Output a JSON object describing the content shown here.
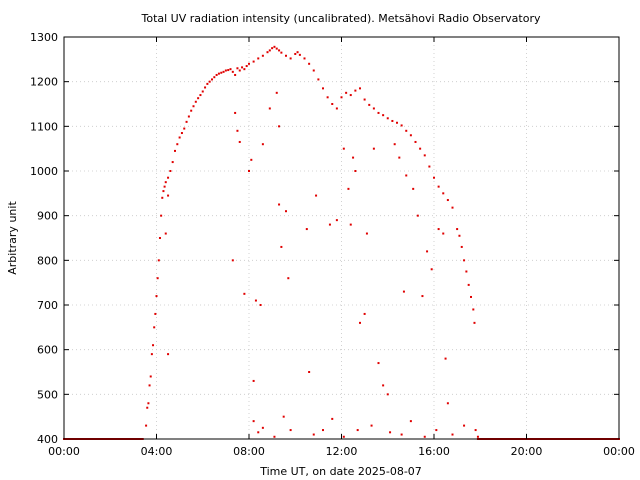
{
  "chart_data": {
    "type": "scatter",
    "title": "Total UV radiation intensity (uncalibrated). Metsähovi Radio Observatory",
    "xlabel": "Time UT, on date 2025-08-07",
    "ylabel": "Arbitrary unit",
    "xlim": [
      0,
      24
    ],
    "ylim": [
      400,
      1300
    ],
    "x_unit": "hours UT",
    "x_ticks": [
      0,
      4,
      8,
      12,
      16,
      20,
      24
    ],
    "x_tick_labels": [
      "00:00",
      "04:00",
      "08:00",
      "12:00",
      "16:00",
      "20:00",
      "00:00"
    ],
    "y_ticks": [
      400,
      500,
      600,
      700,
      800,
      900,
      1000,
      1100,
      1200,
      1300
    ],
    "y_tick_labels": [
      "400",
      "500",
      "600",
      "700",
      "800",
      "900",
      "1000",
      "1100",
      "1200",
      "1300"
    ],
    "grid": true,
    "marker_color": "#e00000",
    "series": [
      {
        "points": [
          [
            0.0,
            400
          ],
          [
            0.5,
            400
          ],
          [
            1.0,
            400
          ],
          [
            1.5,
            400
          ],
          [
            2.0,
            400
          ],
          [
            2.5,
            400
          ],
          [
            3.0,
            400
          ],
          [
            3.4,
            400
          ],
          [
            3.55,
            430
          ],
          [
            3.6,
            470
          ],
          [
            3.65,
            480
          ],
          [
            3.7,
            520
          ],
          [
            3.75,
            540
          ],
          [
            3.8,
            590
          ],
          [
            3.85,
            610
          ],
          [
            3.9,
            650
          ],
          [
            3.95,
            680
          ],
          [
            4.0,
            720
          ],
          [
            4.05,
            760
          ],
          [
            4.1,
            800
          ],
          [
            4.15,
            850
          ],
          [
            4.2,
            900
          ],
          [
            4.25,
            940
          ],
          [
            4.3,
            955
          ],
          [
            4.35,
            965
          ],
          [
            4.4,
            975
          ],
          [
            4.5,
            985
          ],
          [
            4.6,
            1000
          ],
          [
            4.7,
            1020
          ],
          [
            4.8,
            1045
          ],
          [
            4.9,
            1060
          ],
          [
            5.0,
            1075
          ],
          [
            5.1,
            1085
          ],
          [
            5.2,
            1095
          ],
          [
            5.3,
            1110
          ],
          [
            5.4,
            1122
          ],
          [
            5.5,
            1135
          ],
          [
            5.6,
            1145
          ],
          [
            5.7,
            1155
          ],
          [
            5.8,
            1163
          ],
          [
            5.9,
            1170
          ],
          [
            6.0,
            1178
          ],
          [
            6.1,
            1187
          ],
          [
            6.2,
            1195
          ],
          [
            6.3,
            1200
          ],
          [
            6.4,
            1205
          ],
          [
            6.5,
            1210
          ],
          [
            6.6,
            1215
          ],
          [
            6.7,
            1218
          ],
          [
            6.8,
            1220
          ],
          [
            6.9,
            1222
          ],
          [
            7.0,
            1225
          ],
          [
            7.1,
            1226
          ],
          [
            7.2,
            1228
          ],
          [
            7.3,
            1222
          ],
          [
            7.4,
            1215
          ],
          [
            7.5,
            1230
          ],
          [
            7.6,
            1225
          ],
          [
            7.7,
            1232
          ],
          [
            7.8,
            1228
          ],
          [
            7.9,
            1235
          ],
          [
            8.0,
            1240
          ],
          [
            8.2,
            1245
          ],
          [
            8.4,
            1252
          ],
          [
            8.6,
            1258
          ],
          [
            8.8,
            1266
          ],
          [
            8.9,
            1270
          ],
          [
            9.0,
            1275
          ],
          [
            9.1,
            1278
          ],
          [
            9.2,
            1274
          ],
          [
            9.3,
            1270
          ],
          [
            9.4,
            1265
          ],
          [
            9.6,
            1258
          ],
          [
            9.8,
            1252
          ],
          [
            10.0,
            1262
          ],
          [
            10.1,
            1266
          ],
          [
            10.2,
            1260
          ],
          [
            10.4,
            1252
          ],
          [
            10.6,
            1240
          ],
          [
            10.8,
            1225
          ],
          [
            11.0,
            1205
          ],
          [
            11.2,
            1185
          ],
          [
            11.4,
            1165
          ],
          [
            11.6,
            1150
          ],
          [
            11.8,
            1140
          ],
          [
            12.0,
            1165
          ],
          [
            12.2,
            1175
          ],
          [
            12.4,
            1170
          ],
          [
            12.6,
            1180
          ],
          [
            12.8,
            1185
          ],
          [
            13.0,
            1160
          ],
          [
            13.2,
            1148
          ],
          [
            13.4,
            1140
          ],
          [
            13.6,
            1130
          ],
          [
            13.8,
            1125
          ],
          [
            14.0,
            1118
          ],
          [
            14.2,
            1112
          ],
          [
            14.4,
            1108
          ],
          [
            14.6,
            1102
          ],
          [
            14.8,
            1090
          ],
          [
            15.0,
            1080
          ],
          [
            15.2,
            1065
          ],
          [
            15.4,
            1050
          ],
          [
            15.6,
            1035
          ],
          [
            15.8,
            1010
          ],
          [
            16.0,
            985
          ],
          [
            16.2,
            965
          ],
          [
            16.4,
            950
          ],
          [
            16.6,
            935
          ],
          [
            16.8,
            918
          ],
          [
            17.0,
            870
          ],
          [
            17.1,
            855
          ],
          [
            17.2,
            830
          ],
          [
            17.3,
            800
          ],
          [
            17.4,
            775
          ],
          [
            17.5,
            745
          ],
          [
            17.6,
            718
          ],
          [
            17.7,
            690
          ],
          [
            17.75,
            660
          ],
          [
            17.8,
            420
          ],
          [
            17.9,
            405
          ],
          [
            18.0,
            400
          ],
          [
            19.0,
            400
          ],
          [
            20.0,
            400
          ],
          [
            21.0,
            400
          ],
          [
            22.0,
            400
          ],
          [
            23.0,
            400
          ],
          [
            24.0,
            400
          ],
          [
            4.5,
            945
          ],
          [
            4.4,
            860
          ],
          [
            4.5,
            590
          ],
          [
            7.3,
            800
          ],
          [
            7.4,
            1130
          ],
          [
            7.5,
            1090
          ],
          [
            7.6,
            1065
          ],
          [
            7.8,
            725
          ],
          [
            8.0,
            1000
          ],
          [
            8.1,
            1025
          ],
          [
            8.2,
            530
          ],
          [
            8.3,
            710
          ],
          [
            8.5,
            700
          ],
          [
            8.6,
            1060
          ],
          [
            8.9,
            1140
          ],
          [
            9.2,
            1175
          ],
          [
            9.3,
            1100
          ],
          [
            9.3,
            925
          ],
          [
            9.4,
            830
          ],
          [
            9.6,
            910
          ],
          [
            9.7,
            760
          ],
          [
            9.5,
            450
          ],
          [
            9.8,
            420
          ],
          [
            10.5,
            870
          ],
          [
            10.6,
            550
          ],
          [
            10.9,
            945
          ],
          [
            11.2,
            420
          ],
          [
            11.5,
            880
          ],
          [
            11.8,
            890
          ],
          [
            12.1,
            1050
          ],
          [
            12.3,
            960
          ],
          [
            12.4,
            880
          ],
          [
            12.5,
            1030
          ],
          [
            12.6,
            1000
          ],
          [
            12.8,
            660
          ],
          [
            13.0,
            680
          ],
          [
            13.1,
            860
          ],
          [
            13.4,
            1050
          ],
          [
            13.6,
            570
          ],
          [
            13.8,
            520
          ],
          [
            14.0,
            500
          ],
          [
            14.3,
            1060
          ],
          [
            14.5,
            1030
          ],
          [
            14.7,
            730
          ],
          [
            14.8,
            990
          ],
          [
            15.1,
            960
          ],
          [
            15.3,
            900
          ],
          [
            15.5,
            720
          ],
          [
            15.7,
            820
          ],
          [
            15.9,
            780
          ],
          [
            16.2,
            870
          ],
          [
            16.4,
            860
          ],
          [
            16.5,
            580
          ],
          [
            16.6,
            480
          ],
          [
            8.2,
            440
          ],
          [
            8.4,
            415
          ],
          [
            8.6,
            425
          ],
          [
            9.1,
            405
          ],
          [
            10.8,
            410
          ],
          [
            11.6,
            445
          ],
          [
            12.1,
            405
          ],
          [
            12.7,
            420
          ],
          [
            13.3,
            430
          ],
          [
            14.1,
            415
          ],
          [
            14.6,
            410
          ],
          [
            15.0,
            440
          ],
          [
            15.6,
            405
          ],
          [
            16.1,
            420
          ],
          [
            16.8,
            410
          ],
          [
            17.3,
            430
          ]
        ]
      }
    ]
  }
}
